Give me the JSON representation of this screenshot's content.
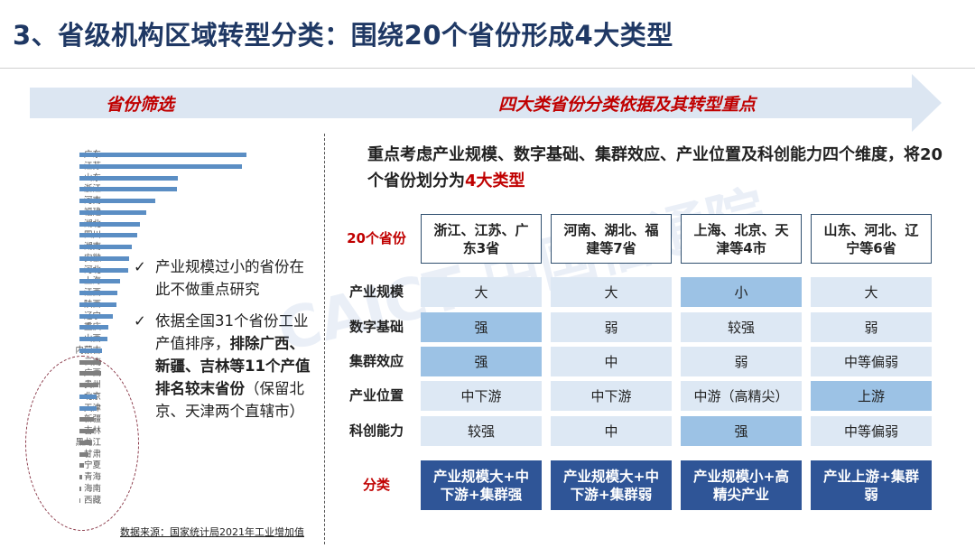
{
  "title": "3、省级机构区域转型分类：围绕20个省份形成4大类型",
  "band": {
    "left_label": "省份筛选",
    "right_label": "四大类省份分类依据及其转型重点",
    "color": "#dce6f2"
  },
  "chart_data": {
    "type": "bar",
    "orientation": "horizontal",
    "title": "",
    "categories": [
      "广东",
      "江苏",
      "山东",
      "浙江",
      "河南",
      "福建",
      "湖北",
      "四川",
      "湖南",
      "安徽",
      "河北",
      "上海",
      "江西",
      "陕西",
      "辽宁",
      "重庆",
      "山西",
      "内蒙古",
      "云南",
      "广西",
      "贵州",
      "北京",
      "天津",
      "新疆",
      "吉林",
      "黑龙江",
      "甘肃",
      "宁夏",
      "青海",
      "海南",
      "西藏"
    ],
    "values": [
      45000,
      43700,
      26500,
      26200,
      20400,
      18000,
      16300,
      15600,
      14100,
      13400,
      13100,
      10900,
      10200,
      10000,
      9000,
      7800,
      7500,
      6100,
      5900,
      5800,
      5100,
      4600,
      4600,
      3900,
      3900,
      3400,
      2400,
      1200,
      700,
      500,
      100
    ],
    "retained": [
      true,
      true,
      true,
      true,
      true,
      true,
      true,
      true,
      true,
      true,
      true,
      true,
      true,
      true,
      true,
      true,
      true,
      true,
      false,
      false,
      false,
      true,
      true,
      false,
      false,
      false,
      false,
      false,
      false,
      false,
      false
    ],
    "colors": {
      "retained": "#5b8ec4",
      "excluded": "#7f7f7f"
    },
    "grid": false,
    "axis_shown": false
  },
  "bullets": [
    {
      "parts": [
        {
          "text": "产业规模过小的省份在此不做重点研究",
          "bold": false
        }
      ]
    },
    {
      "parts": [
        {
          "text": "依据全国31个省份工业产值排序，",
          "bold": false
        },
        {
          "text": "排除广西、新疆、吉林等11个产值排名较末省份",
          "bold": true
        },
        {
          "text": "（保留北京、天津两个直辖市）",
          "bold": false
        }
      ]
    }
  ],
  "check_icon": "check-icon",
  "source": "数据来源：国家统计局2021年工业增加值",
  "intro": {
    "text": "重点考虑产业规模、数字基础、集群效应、产业位置及科创能力四个维度，将20个省份划分为",
    "highlight": "4大类型"
  },
  "table": {
    "header_label": "20个省份",
    "groups": [
      "浙江、江苏、广东3省",
      "河南、湖北、福建等7省",
      "上海、北京、天津等4市",
      "山东、河北、辽宁等6省"
    ],
    "rows": [
      {
        "label": "产业规模",
        "cells": [
          "大",
          "大",
          "小",
          "大"
        ],
        "highlight": [
          false,
          false,
          true,
          false
        ]
      },
      {
        "label": "数字基础",
        "cells": [
          "强",
          "弱",
          "较强",
          "弱"
        ],
        "highlight": [
          true,
          false,
          false,
          false
        ]
      },
      {
        "label": "集群效应",
        "cells": [
          "强",
          "中",
          "弱",
          "中等偏弱"
        ],
        "highlight": [
          true,
          false,
          false,
          false
        ]
      },
      {
        "label": "产业位置",
        "cells": [
          "中下游",
          "中下游",
          "中游（高精尖）",
          "上游"
        ],
        "highlight": [
          false,
          false,
          false,
          true
        ]
      },
      {
        "label": "科创能力",
        "cells": [
          "较强",
          "中",
          "强",
          "中等偏弱"
        ],
        "highlight": [
          false,
          false,
          true,
          false
        ]
      }
    ],
    "category_label": "分类",
    "categories": [
      "产业规模大+中下游+集群强",
      "产业规模大+中下游+集群弱",
      "产业规模小+高精尖产业",
      "产业上游+集群弱"
    ],
    "colors": {
      "cell": "#dde8f4",
      "cell_highlight": "#9cc2e5",
      "category": "#2f5597",
      "accent_red": "#c00000"
    }
  },
  "watermark": "CAICT 中国信通院"
}
